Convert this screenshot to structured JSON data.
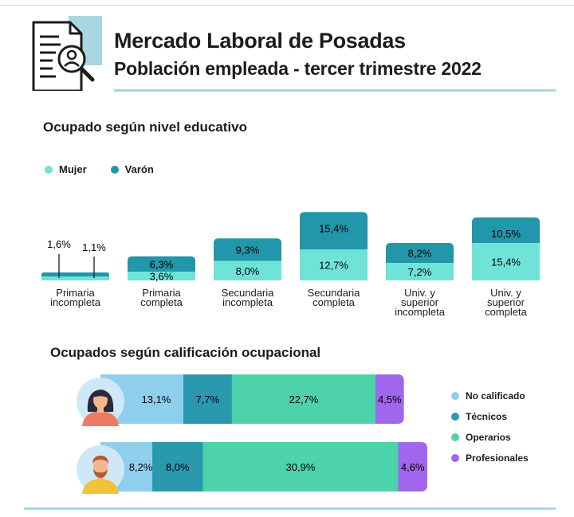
{
  "header": {
    "title": "Mercado Laboral de Posadas",
    "subtitle": "Población empleada - tercer trimestre 2022",
    "icon": "document-search-person-icon"
  },
  "colors": {
    "mujer": "#6fe3d8",
    "varon": "#2296aa",
    "no_calificado": "#8fcfee",
    "tecnicos": "#2a99ae",
    "operarios": "#4dd3a9",
    "profesionales": "#a066ee",
    "rule": "#a9d7e0"
  },
  "chart_data": [
    {
      "type": "bar",
      "stacked": true,
      "title": "Ocupado según nivel educativo",
      "categories": [
        [
          "Primaria",
          "incompleta"
        ],
        [
          "Primaria",
          "completa"
        ],
        [
          "Secundaria",
          "incompleta"
        ],
        [
          "Secundaria",
          "completa"
        ],
        [
          "Univ. y",
          "superior",
          "incompleta"
        ],
        [
          "Univ. y",
          "superior",
          "completa"
        ]
      ],
      "series": [
        {
          "name": "Mujer",
          "values": [
            1.6,
            3.6,
            8.0,
            12.7,
            7.2,
            15.4
          ],
          "labels": [
            "1,6%",
            "3,6%",
            "8,0%",
            "12,7%",
            "7,2%",
            "15,4%"
          ]
        },
        {
          "name": "Varón",
          "values": [
            1.1,
            6.3,
            9.3,
            15.4,
            8.2,
            10.5
          ],
          "labels": [
            "1,1%",
            "6,3%",
            "9,3%",
            "15,4%",
            "8,2%",
            "10,5%"
          ]
        }
      ],
      "legend": [
        "Mujer",
        "Varón"
      ]
    },
    {
      "type": "bar",
      "orientation": "horizontal",
      "stacked": true,
      "title": "Ocupados según calificación ocupacional",
      "rows": [
        {
          "name": "Mujer",
          "icon": "woman-avatar-icon",
          "values": [
            13.1,
            7.7,
            22.7,
            4.5
          ],
          "labels": [
            "13,1%",
            "7,7%",
            "22,7%",
            "4,5%"
          ]
        },
        {
          "name": "Varón",
          "icon": "man-avatar-icon",
          "values": [
            8.2,
            8.0,
            30.9,
            4.6
          ],
          "labels": [
            "8,2%",
            "8,0%",
            "30,9%",
            "4,6%"
          ]
        }
      ],
      "series_names": [
        "No calificado",
        "Técnicos",
        "Operarios",
        "Profesionales"
      ]
    }
  ]
}
